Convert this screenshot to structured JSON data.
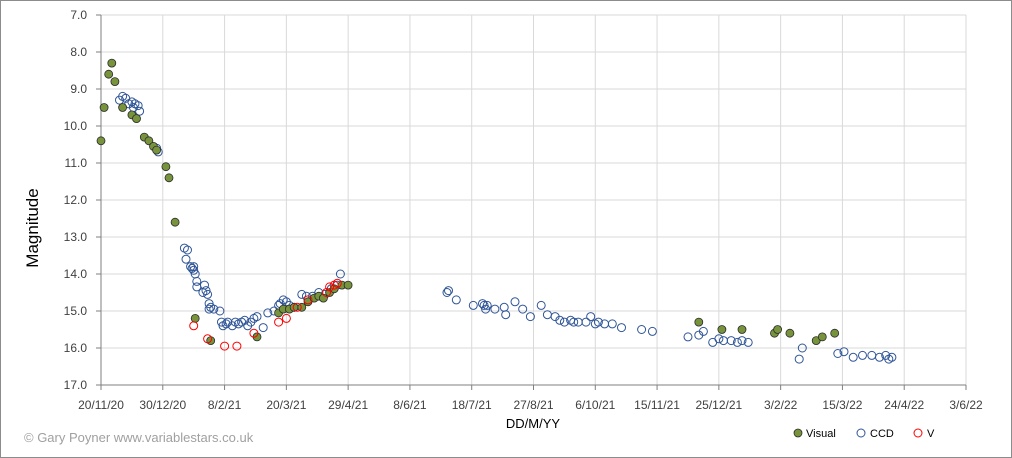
{
  "chart_data": {
    "type": "scatter",
    "title": "",
    "xlabel": "DD/M/YY",
    "ylabel": "Magnitude",
    "ylim": [
      7.0,
      17.0
    ],
    "y_inverted": true,
    "y_ticks": [
      "7.0",
      "8.0",
      "9.0",
      "10.0",
      "11.0",
      "12.0",
      "13.0",
      "14.0",
      "15.0",
      "16.0",
      "17.0"
    ],
    "x_ticks": [
      "20/11/20",
      "30/12/20",
      "8/2/21",
      "20/3/21",
      "29/4/21",
      "8/6/21",
      "18/7/21",
      "27/8/21",
      "6/10/21",
      "15/11/21",
      "25/12/21",
      "3/2/22",
      "15/3/22",
      "24/4/22",
      "3/6/22"
    ],
    "xlim": [
      "2020-11-20",
      "2022-06-03"
    ],
    "grid": true,
    "legend_position": "bottom-right",
    "series": [
      {
        "name": "Visual",
        "marker": "filled-circle",
        "color": "#77933c",
        "points": [
          [
            "2020-11-20",
            10.4
          ],
          [
            "2020-11-22",
            9.5
          ],
          [
            "2020-11-25",
            8.6
          ],
          [
            "2020-11-27",
            8.3
          ],
          [
            "2020-11-29",
            8.8
          ],
          [
            "2020-12-04",
            9.5
          ],
          [
            "2020-12-10",
            9.7
          ],
          [
            "2020-12-13",
            9.8
          ],
          [
            "2020-12-18",
            10.3
          ],
          [
            "2020-12-21",
            10.4
          ],
          [
            "2020-12-24",
            10.55
          ],
          [
            "2020-12-26",
            10.65
          ],
          [
            "2021-01-01",
            11.1
          ],
          [
            "2021-01-03",
            11.4
          ],
          [
            "2021-01-07",
            12.6
          ],
          [
            "2021-01-20",
            15.2
          ],
          [
            "2021-01-30",
            15.8
          ],
          [
            "2021-03-01",
            15.7
          ],
          [
            "2021-03-15",
            15.05
          ],
          [
            "2021-03-18",
            14.95
          ],
          [
            "2021-03-22",
            14.95
          ],
          [
            "2021-03-25",
            14.9
          ],
          [
            "2021-03-30",
            14.9
          ],
          [
            "2021-04-03",
            14.75
          ],
          [
            "2021-04-07",
            14.65
          ],
          [
            "2021-04-10",
            14.6
          ],
          [
            "2021-04-13",
            14.65
          ],
          [
            "2021-04-17",
            14.5
          ],
          [
            "2021-04-20",
            14.4
          ],
          [
            "2021-04-25",
            14.3
          ],
          [
            "2021-04-29",
            14.3
          ],
          [
            "2021-12-12",
            15.3
          ],
          [
            "2021-12-27",
            15.5
          ],
          [
            "2022-01-09",
            15.5
          ],
          [
            "2022-01-30",
            15.6
          ],
          [
            "2022-02-01",
            15.5
          ],
          [
            "2022-02-09",
            15.6
          ],
          [
            "2022-02-26",
            15.8
          ],
          [
            "2022-03-02",
            15.7
          ],
          [
            "2022-03-10",
            15.6
          ]
        ]
      },
      {
        "name": "CCD",
        "marker": "open-circle",
        "color": "#2f5597",
        "points": [
          [
            "2020-12-02",
            9.3
          ],
          [
            "2020-12-04",
            9.2
          ],
          [
            "2020-12-06",
            9.25
          ],
          [
            "2020-12-08",
            9.4
          ],
          [
            "2020-12-10",
            9.35
          ],
          [
            "2020-12-11",
            9.5
          ],
          [
            "2020-12-12",
            9.4
          ],
          [
            "2020-12-14",
            9.45
          ],
          [
            "2020-12-15",
            9.6
          ],
          [
            "2020-12-26",
            10.6
          ],
          [
            "2020-12-27",
            10.7
          ],
          [
            "2021-01-13",
            13.3
          ],
          [
            "2021-01-14",
            13.6
          ],
          [
            "2021-01-15",
            13.35
          ],
          [
            "2021-01-17",
            13.8
          ],
          [
            "2021-01-18",
            13.85
          ],
          [
            "2021-01-19",
            13.9
          ],
          [
            "2021-01-19",
            13.8
          ],
          [
            "2021-01-20",
            14.0
          ],
          [
            "2021-01-21",
            14.2
          ],
          [
            "2021-01-21",
            14.35
          ],
          [
            "2021-01-25",
            14.5
          ],
          [
            "2021-01-26",
            14.3
          ],
          [
            "2021-01-27",
            14.45
          ],
          [
            "2021-01-28",
            14.55
          ],
          [
            "2021-01-29",
            14.8
          ],
          [
            "2021-01-29",
            14.95
          ],
          [
            "2021-01-30",
            14.9
          ],
          [
            "2021-02-01",
            14.95
          ],
          [
            "2021-02-05",
            15.0
          ],
          [
            "2021-02-06",
            15.3
          ],
          [
            "2021-02-07",
            15.4
          ],
          [
            "2021-02-09",
            15.35
          ],
          [
            "2021-02-10",
            15.3
          ],
          [
            "2021-02-13",
            15.4
          ],
          [
            "2021-02-15",
            15.3
          ],
          [
            "2021-02-17",
            15.35
          ],
          [
            "2021-02-19",
            15.3
          ],
          [
            "2021-02-21",
            15.25
          ],
          [
            "2021-02-23",
            15.4
          ],
          [
            "2021-02-25",
            15.3
          ],
          [
            "2021-02-27",
            15.2
          ],
          [
            "2021-03-01",
            15.15
          ],
          [
            "2021-03-05",
            15.45
          ],
          [
            "2021-03-08",
            15.05
          ],
          [
            "2021-03-12",
            15.0
          ],
          [
            "2021-03-15",
            14.85
          ],
          [
            "2021-03-16",
            14.8
          ],
          [
            "2021-03-18",
            14.7
          ],
          [
            "2021-03-20",
            14.75
          ],
          [
            "2021-03-22",
            14.85
          ],
          [
            "2021-03-25",
            14.9
          ],
          [
            "2021-03-30",
            14.55
          ],
          [
            "2021-04-02",
            14.6
          ],
          [
            "2021-04-06",
            14.6
          ],
          [
            "2021-04-10",
            14.5
          ],
          [
            "2021-04-14",
            14.55
          ],
          [
            "2021-04-18",
            14.4
          ],
          [
            "2021-04-22",
            14.3
          ],
          [
            "2021-04-24",
            14.0
          ],
          [
            "2021-07-02",
            14.5
          ],
          [
            "2021-07-03",
            14.45
          ],
          [
            "2021-07-08",
            14.7
          ],
          [
            "2021-07-19",
            14.85
          ],
          [
            "2021-07-25",
            14.8
          ],
          [
            "2021-07-26",
            14.85
          ],
          [
            "2021-07-27",
            14.95
          ],
          [
            "2021-07-28",
            14.85
          ],
          [
            "2021-08-02",
            14.95
          ],
          [
            "2021-08-08",
            14.9
          ],
          [
            "2021-08-09",
            15.1
          ],
          [
            "2021-08-15",
            14.75
          ],
          [
            "2021-08-20",
            14.95
          ],
          [
            "2021-08-25",
            15.15
          ],
          [
            "2021-09-01",
            14.85
          ],
          [
            "2021-09-05",
            15.1
          ],
          [
            "2021-09-10",
            15.15
          ],
          [
            "2021-09-13",
            15.25
          ],
          [
            "2021-09-16",
            15.3
          ],
          [
            "2021-09-20",
            15.25
          ],
          [
            "2021-09-22",
            15.3
          ],
          [
            "2021-09-25",
            15.3
          ],
          [
            "2021-09-30",
            15.3
          ],
          [
            "2021-10-03",
            15.15
          ],
          [
            "2021-10-06",
            15.35
          ],
          [
            "2021-10-08",
            15.3
          ],
          [
            "2021-10-12",
            15.35
          ],
          [
            "2021-10-17",
            15.35
          ],
          [
            "2021-10-23",
            15.45
          ],
          [
            "2021-11-05",
            15.5
          ],
          [
            "2021-11-12",
            15.55
          ],
          [
            "2021-12-05",
            15.7
          ],
          [
            "2021-12-12",
            15.65
          ],
          [
            "2021-12-15",
            15.55
          ],
          [
            "2021-12-21",
            15.85
          ],
          [
            "2021-12-25",
            15.75
          ],
          [
            "2021-12-28",
            15.8
          ],
          [
            "2022-01-02",
            15.8
          ],
          [
            "2022-01-06",
            15.85
          ],
          [
            "2022-01-09",
            15.8
          ],
          [
            "2022-01-13",
            15.85
          ],
          [
            "2022-02-15",
            16.3
          ],
          [
            "2022-02-17",
            16.0
          ],
          [
            "2022-03-12",
            16.15
          ],
          [
            "2022-03-16",
            16.1
          ],
          [
            "2022-03-22",
            16.25
          ],
          [
            "2022-03-28",
            16.2
          ],
          [
            "2022-04-03",
            16.2
          ],
          [
            "2022-04-08",
            16.25
          ],
          [
            "2022-04-12",
            16.2
          ],
          [
            "2022-04-14",
            16.3
          ],
          [
            "2022-04-16",
            16.25
          ]
        ]
      },
      {
        "name": "V",
        "marker": "open-circle",
        "color": "#ff0000",
        "points": [
          [
            "2021-01-19",
            15.4
          ],
          [
            "2021-01-28",
            15.75
          ],
          [
            "2021-02-08",
            15.95
          ],
          [
            "2021-02-16",
            15.95
          ],
          [
            "2021-02-27",
            15.6
          ],
          [
            "2021-03-15",
            15.3
          ],
          [
            "2021-03-20",
            15.2
          ],
          [
            "2021-03-27",
            14.9
          ],
          [
            "2021-04-03",
            14.7
          ],
          [
            "2021-04-15",
            14.5
          ],
          [
            "2021-04-17",
            14.35
          ],
          [
            "2021-04-20",
            14.3
          ],
          [
            "2021-04-22",
            14.25
          ]
        ]
      }
    ]
  },
  "credit": "© Gary Poyner www.variablestars.co.uk"
}
